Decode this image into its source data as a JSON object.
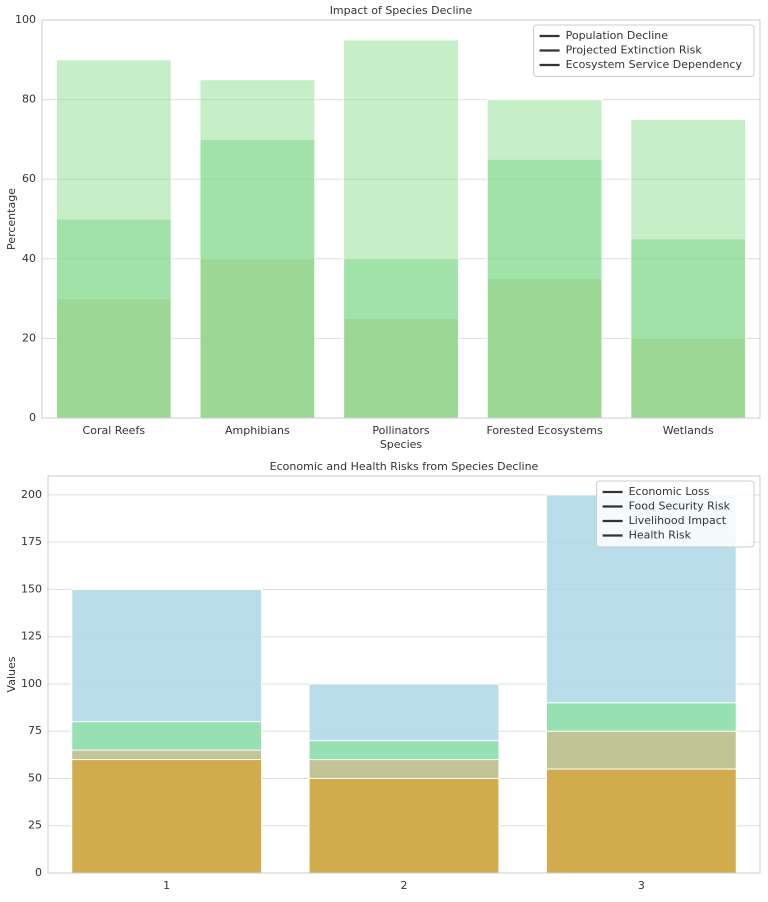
{
  "chart_data": [
    {
      "type": "bar",
      "title": "Impact of Species Decline",
      "xlabel": "Species",
      "ylabel": "Percentage",
      "categories": [
        "Coral Reefs",
        "Amphibians",
        "Pollinators",
        "Forested Ecosystems",
        "Wetlands"
      ],
      "series": [
        {
          "name": "Population Decline",
          "color": "#d9a860",
          "values": [
            30,
            40,
            25,
            35,
            20
          ]
        },
        {
          "name": "Projected Extinction Risk",
          "color": "#66cc88",
          "values": [
            50,
            70,
            40,
            65,
            45
          ]
        },
        {
          "name": "Ecosystem Service Dependency",
          "color": "#90e090",
          "values": [
            90,
            85,
            95,
            80,
            75
          ]
        }
      ],
      "ylim": [
        0,
        100
      ],
      "yticks": [
        0,
        20,
        40,
        60,
        80,
        100
      ],
      "grid": true,
      "legend": "upper right",
      "alpha": 0.5
    },
    {
      "type": "bar",
      "title": "Economic and Health Risks from Species Decline",
      "ylabel": "Values",
      "categories": [
        "1",
        "2",
        "3"
      ],
      "series": [
        {
          "name": "Economic Loss",
          "color": "#add8e6",
          "values": [
            150,
            100,
            200
          ]
        },
        {
          "name": "Food Security Risk",
          "color": "#90e0a8",
          "values": [
            80,
            70,
            90
          ]
        },
        {
          "name": "Livelihood Impact",
          "color": "#c8c090",
          "values": [
            65,
            60,
            75
          ]
        },
        {
          "name": "Health Risk",
          "color": "#d4a640",
          "values": [
            60,
            50,
            55
          ]
        }
      ],
      "ylim": [
        0,
        210
      ],
      "yticks": [
        0,
        25,
        50,
        75,
        100,
        125,
        150,
        175,
        200
      ],
      "grid": true,
      "legend": "upper right",
      "alpha": 0.85
    }
  ]
}
